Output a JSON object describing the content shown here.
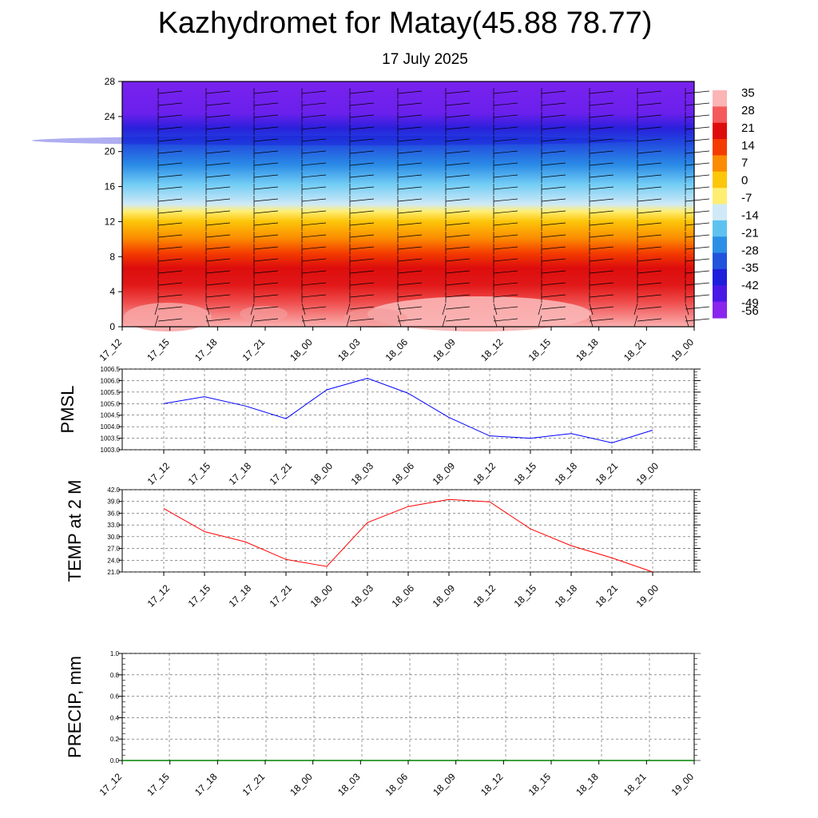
{
  "title": "Kazhydromet for Matay(45.88 78.77)",
  "subtitle": "17 July 2025",
  "chart_data": [
    {
      "type": "heatmap",
      "x": [
        "17_12",
        "17_15",
        "17_18",
        "17_21",
        "18_00",
        "18_03",
        "18_06",
        "18_09",
        "18_12",
        "18_15",
        "18_18",
        "18_21",
        "19_00"
      ],
      "y_ticks": [
        "0",
        "4",
        "8",
        "12",
        "16",
        "20",
        "24",
        "28"
      ],
      "ylim": [
        0,
        28
      ],
      "colorbar": {
        "labels": [
          "35",
          "28",
          "21",
          "14",
          "7",
          "0",
          "-7",
          "-14",
          "-21",
          "-28",
          "-35",
          "-42",
          "-49",
          "-56"
        ],
        "colors": [
          "#fbb5b5",
          "#f55a5a",
          "#dd0d0d",
          "#f43c00",
          "#fb8b00",
          "#fcc60a",
          "#ffee72",
          "#cfe9f7",
          "#5ec2f0",
          "#2c8fe6",
          "#2153dd",
          "#1e1edc",
          "#4a18e6",
          "#8a25ee"
        ]
      },
      "wind_barbs": true
    },
    {
      "type": "line",
      "ylabel": "PMSL",
      "x": [
        "17_12",
        "17_15",
        "17_18",
        "17_21",
        "18_00",
        "18_03",
        "18_06",
        "18_09",
        "18_12",
        "18_15",
        "18_18",
        "18_21",
        "19_00"
      ],
      "series": [
        {
          "values": [
            1005.0,
            1005.3,
            1004.9,
            1004.35,
            1005.6,
            1006.1,
            1005.45,
            1004.4,
            1003.6,
            1003.5,
            1003.7,
            1003.3,
            1003.85
          ],
          "color": "#0000ff"
        }
      ],
      "y_ticks": [
        "1003.0",
        "1003.5",
        "1004.0",
        "1004.5",
        "1005.0",
        "1005.5",
        "1006.0",
        "1006.5"
      ],
      "ylim": [
        1003.0,
        1006.5
      ],
      "grid": true
    },
    {
      "type": "line",
      "ylabel": "TEMP at 2 M",
      "x": [
        "17_12",
        "17_15",
        "17_18",
        "17_21",
        "18_00",
        "18_03",
        "18_06",
        "18_09",
        "18_12",
        "18_15",
        "18_18",
        "18_21",
        "19_00"
      ],
      "series": [
        {
          "values": [
            37.2,
            31.3,
            28.7,
            24.2,
            22.4,
            33.6,
            37.7,
            39.5,
            38.9,
            32.0,
            27.7,
            24.6,
            21.0
          ],
          "color": "#ff0000"
        }
      ],
      "y_ticks": [
        "21.0",
        "24.0",
        "27.0",
        "30.0",
        "33.0",
        "36.0",
        "39.0",
        "42.0"
      ],
      "ylim": [
        21.0,
        42.0
      ],
      "grid": true
    },
    {
      "type": "line",
      "ylabel": "PRECIP, mm",
      "x": [
        "17_12",
        "17_15",
        "17_18",
        "17_21",
        "18_00",
        "18_03",
        "18_06",
        "18_09",
        "18_12",
        "18_15",
        "18_18",
        "18_21",
        "19_00"
      ],
      "series": [
        {
          "values": [
            0,
            0,
            0,
            0,
            0,
            0,
            0,
            0,
            0,
            0,
            0,
            0,
            0
          ],
          "color": "#008000"
        }
      ],
      "y_ticks": [
        "0.0",
        "0.2",
        "0.4",
        "0.6",
        "0.8",
        "1.0"
      ],
      "ylim": [
        0.0,
        1.0
      ],
      "grid": true
    }
  ]
}
